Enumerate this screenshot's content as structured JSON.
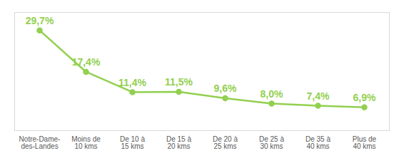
{
  "chart_data": {
    "type": "line",
    "categories": [
      "Notre-Dame-des-Landes",
      "Moins de 10 kms",
      "De 10 à 15 kms",
      "De 15 à 20 kms",
      "De 20 à 25 kms",
      "De 25 à 30 kms",
      "De 35 à 40 kms",
      "Plus de 40 kms"
    ],
    "values": [
      29.7,
      17.4,
      11.4,
      11.5,
      9.6,
      8.0,
      7.4,
      6.9
    ],
    "value_labels": [
      "29,7%",
      "17,4%",
      "11,4%",
      "11,5%",
      "9,6%",
      "8,0%",
      "7,4%",
      "6,9%"
    ],
    "color": "#92d050",
    "marker": "circle",
    "line_style": "solid",
    "ylim": [
      0,
      35
    ],
    "data_labels": true,
    "tick_labels": "x",
    "grid": false
  }
}
